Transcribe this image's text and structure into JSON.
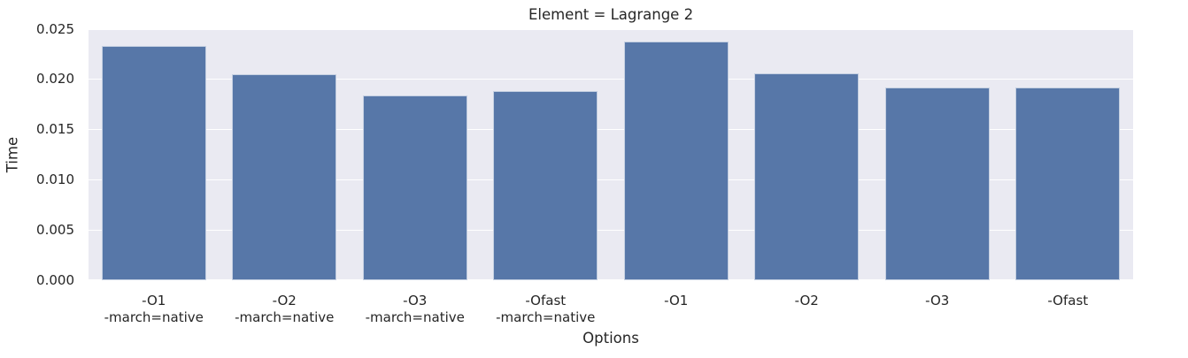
{
  "chart_data": {
    "type": "bar",
    "title": "Element = Lagrange 2",
    "xlabel": "Options",
    "ylabel": "Time",
    "ylim": [
      0,
      0.025
    ],
    "yticks": [
      0,
      0.005,
      0.01,
      0.015,
      0.02,
      0.025
    ],
    "ytick_labels": [
      "0.000",
      "0.005",
      "0.010",
      "0.015",
      "0.020",
      "0.025"
    ],
    "categories": [
      "-O1\n-march=native",
      "-O2\n-march=native",
      "-O3\n-march=native",
      "-Ofast\n-march=native",
      "-O1",
      "-O2",
      "-O3",
      "-Ofast"
    ],
    "values": [
      0.0233,
      0.0205,
      0.0184,
      0.0188,
      0.0238,
      0.0206,
      0.0192,
      0.0192
    ],
    "bar_color": "#5777a8",
    "plot_bg": "#eaeaf2",
    "grid_color": "#ffffff",
    "text_color": "#262626",
    "grid": true,
    "legend_position": "none",
    "bar_width_fraction": 0.8
  }
}
